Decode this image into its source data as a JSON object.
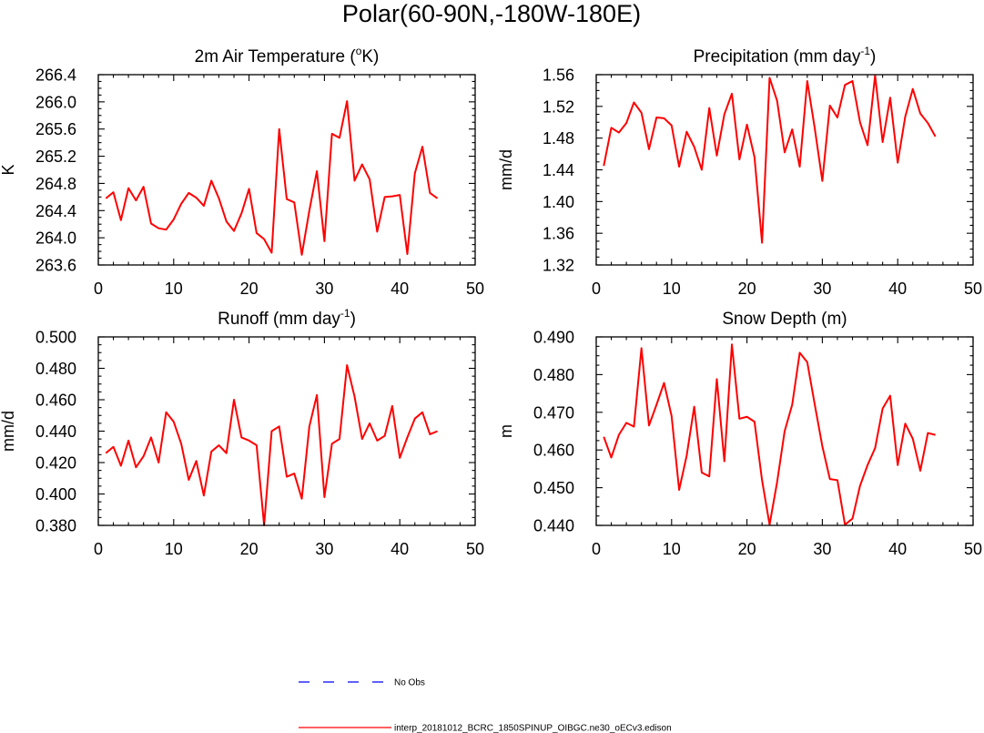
{
  "title": "Polar(60-90N,-180W-180E)",
  "colors": {
    "model_line": "#ff0000",
    "obs_line": "#0000ff",
    "axis": "#000000"
  },
  "legend": {
    "obs_label": "No Obs",
    "model_label": "interp_20181012_BCRC_1850SPINUP_OIBGC.ne30_oECv3.edison"
  },
  "chart_data": [
    {
      "type": "line",
      "title": "2m Air Temperature (",
      "title_sup": "o",
      "title_suffix": "K)",
      "ylabel": "K",
      "xlim": [
        0,
        50
      ],
      "ylim": [
        263.6,
        266.4
      ],
      "xticks": [
        0,
        10,
        20,
        30,
        40,
        50
      ],
      "yticks": [
        "263.6",
        "264.0",
        "264.4",
        "264.8",
        "265.2",
        "265.6",
        "266.0",
        "266.4"
      ],
      "series": [
        {
          "values": [
            264.58,
            264.67,
            264.26,
            264.73,
            264.55,
            264.75,
            264.21,
            264.14,
            264.12,
            264.27,
            264.5,
            264.66,
            264.59,
            264.47,
            264.84,
            264.58,
            264.24,
            264.1,
            264.36,
            264.72,
            264.07,
            263.98,
            263.78,
            265.6,
            264.57,
            264.52,
            263.75,
            264.4,
            264.98,
            263.95,
            265.53,
            265.47,
            266.01,
            264.84,
            265.08,
            264.86,
            264.09,
            264.6,
            264.61,
            264.63,
            263.76,
            264.95,
            265.34,
            264.66,
            264.58
          ]
        }
      ]
    },
    {
      "type": "line",
      "title": "Precipitation (mm day",
      "title_sup": "-1",
      "title_suffix": ")",
      "ylabel": "mm/d",
      "xlim": [
        0,
        50
      ],
      "ylim": [
        1.32,
        1.56
      ],
      "xticks": [
        0,
        10,
        20,
        30,
        40,
        50
      ],
      "yticks": [
        "1.32",
        "1.36",
        "1.40",
        "1.44",
        "1.48",
        "1.52",
        "1.56"
      ],
      "series": [
        {
          "values": [
            1.445,
            1.493,
            1.487,
            1.499,
            1.525,
            1.512,
            1.466,
            1.506,
            1.505,
            1.496,
            1.444,
            1.488,
            1.469,
            1.44,
            1.518,
            1.458,
            1.51,
            1.536,
            1.453,
            1.497,
            1.456,
            1.348,
            1.556,
            1.527,
            1.462,
            1.491,
            1.444,
            1.552,
            1.492,
            1.426,
            1.521,
            1.506,
            1.547,
            1.552,
            1.5,
            1.471,
            1.559,
            1.475,
            1.531,
            1.449,
            1.507,
            1.542,
            1.511,
            1.499,
            1.482
          ]
        }
      ]
    },
    {
      "type": "line",
      "title": "Runoff (mm day",
      "title_sup": "-1",
      "title_suffix": ")",
      "ylabel": "mm/d",
      "xlim": [
        0,
        50
      ],
      "ylim": [
        0.38,
        0.5
      ],
      "xticks": [
        0,
        10,
        20,
        30,
        40,
        50
      ],
      "yticks": [
        "0.380",
        "0.400",
        "0.420",
        "0.440",
        "0.460",
        "0.480",
        "0.500"
      ],
      "series": [
        {
          "values": [
            0.426,
            0.43,
            0.418,
            0.434,
            0.417,
            0.424,
            0.436,
            0.42,
            0.452,
            0.446,
            0.432,
            0.409,
            0.421,
            0.399,
            0.427,
            0.431,
            0.426,
            0.46,
            0.436,
            0.434,
            0.431,
            0.38,
            0.44,
            0.443,
            0.411,
            0.413,
            0.397,
            0.443,
            0.463,
            0.398,
            0.432,
            0.435,
            0.482,
            0.462,
            0.435,
            0.445,
            0.434,
            0.437,
            0.456,
            0.423,
            0.436,
            0.448,
            0.452,
            0.438,
            0.44
          ]
        }
      ]
    },
    {
      "type": "line",
      "title": "Snow Depth (m)",
      "title_sup": "",
      "title_suffix": "",
      "ylabel": "m",
      "xlim": [
        0,
        50
      ],
      "ylim": [
        0.44,
        0.49
      ],
      "xticks": [
        0,
        10,
        20,
        30,
        40,
        50
      ],
      "yticks": [
        "0.440",
        "0.450",
        "0.460",
        "0.470",
        "0.480",
        "0.490"
      ],
      "series": [
        {
          "values": [
            0.4635,
            0.458,
            0.464,
            0.4672,
            0.4662,
            0.487,
            0.4665,
            0.472,
            0.4778,
            0.469,
            0.4494,
            0.4585,
            0.4715,
            0.454,
            0.453,
            0.4788,
            0.457,
            0.488,
            0.4683,
            0.4688,
            0.4675,
            0.452,
            0.4402,
            0.4515,
            0.465,
            0.472,
            0.4858,
            0.4833,
            0.472,
            0.461,
            0.4523,
            0.452,
            0.4402,
            0.4418,
            0.4505,
            0.456,
            0.4605,
            0.471,
            0.4744,
            0.456,
            0.467,
            0.463,
            0.4545,
            0.4645,
            0.464
          ]
        }
      ]
    }
  ]
}
